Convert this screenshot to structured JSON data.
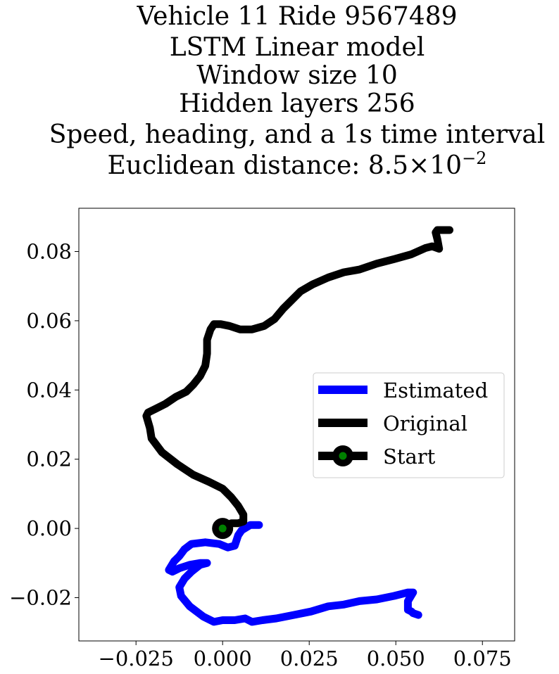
{
  "chart_data": {
    "type": "line",
    "title": [
      "Vehicle 11 Ride 9567489",
      "LSTM Linear model",
      "Window size 10",
      "Hidden layers 256",
      "Speed, heading, and a 1s time interval"
    ],
    "title_metric": {
      "prefix": "Euclidean distance: 8.5",
      "times": "×",
      "base": "10",
      "exponent": "−2"
    },
    "xlabel": "",
    "ylabel": "",
    "xlim": [
      -0.0415,
      0.0843
    ],
    "ylim": [
      -0.0325,
      0.0925
    ],
    "x_ticks": [
      -0.025,
      0.0,
      0.025,
      0.05,
      0.075
    ],
    "x_tick_labels": [
      "−0.025",
      "0.000",
      "0.025",
      "0.050",
      "0.075"
    ],
    "y_ticks": [
      -0.02,
      0.0,
      0.02,
      0.04,
      0.06,
      0.08
    ],
    "y_tick_labels": [
      "−0.02",
      "0.00",
      "0.02",
      "0.04",
      "0.06",
      "0.08"
    ],
    "grid": false,
    "legend_position": "center-right",
    "series": [
      {
        "name": "Estimated",
        "color": "#0000ff",
        "x": [
          0.0105,
          0.008,
          0.0055,
          0.0045,
          0.0035,
          0.0015,
          -0.001,
          -0.005,
          -0.009,
          -0.011,
          -0.0125,
          -0.014,
          -0.0155,
          -0.0145,
          -0.0125,
          -0.0095,
          -0.0065,
          -0.0045,
          -0.0065,
          -0.009,
          -0.011,
          -0.0125,
          -0.012,
          -0.0095,
          -0.0055,
          -0.0025,
          0.0,
          0.0035,
          0.0065,
          0.0085,
          0.0115,
          0.0155,
          0.0205,
          0.0255,
          0.0305,
          0.035,
          0.0395,
          0.0445,
          0.0495,
          0.0535,
          0.055,
          0.0535,
          0.0535,
          0.0545,
          0.055,
          0.0565
        ],
        "y": [
          0.001,
          0.001,
          -0.0005,
          -0.002,
          -0.005,
          -0.0055,
          -0.0045,
          -0.004,
          -0.0045,
          -0.006,
          -0.008,
          -0.0095,
          -0.012,
          -0.0125,
          -0.0115,
          -0.0105,
          -0.01,
          -0.01,
          -0.0105,
          -0.0125,
          -0.0145,
          -0.017,
          -0.0195,
          -0.0225,
          -0.0255,
          -0.027,
          -0.0265,
          -0.0265,
          -0.026,
          -0.027,
          -0.0265,
          -0.026,
          -0.025,
          -0.024,
          -0.0225,
          -0.022,
          -0.021,
          -0.0205,
          -0.0195,
          -0.0185,
          -0.0185,
          -0.021,
          -0.0235,
          -0.024,
          -0.0245,
          -0.025
        ]
      },
      {
        "name": "Original",
        "color": "#000000",
        "x": [
          0.0,
          0.0025,
          0.0045,
          0.006,
          0.006,
          0.0045,
          0.0025,
          0.0,
          -0.004,
          -0.0085,
          -0.013,
          -0.0175,
          -0.0205,
          -0.021,
          -0.022,
          -0.0215,
          -0.0195,
          -0.0165,
          -0.0135,
          -0.0105,
          -0.0085,
          -0.0065,
          -0.005,
          -0.0045,
          -0.0045,
          -0.0035,
          -0.0025,
          -0.0005,
          0.002,
          0.005,
          0.0085,
          0.012,
          0.015,
          0.0175,
          0.0195,
          0.0225,
          0.026,
          0.0305,
          0.035,
          0.0395,
          0.0445,
          0.0495,
          0.0545,
          0.0585,
          0.0605,
          0.0625,
          0.062,
          0.0615,
          0.062,
          0.0635,
          0.0655
        ],
        "y": [
          0.0,
          0.0015,
          0.0015,
          0.002,
          0.004,
          0.0065,
          0.009,
          0.0115,
          0.0135,
          0.0155,
          0.0185,
          0.022,
          0.026,
          0.029,
          0.0325,
          0.0335,
          0.0345,
          0.036,
          0.038,
          0.0395,
          0.0415,
          0.044,
          0.047,
          0.0505,
          0.0545,
          0.0575,
          0.059,
          0.059,
          0.0585,
          0.0575,
          0.0575,
          0.0585,
          0.0605,
          0.0635,
          0.0655,
          0.0685,
          0.0705,
          0.0725,
          0.074,
          0.0748,
          0.0765,
          0.0778,
          0.0792,
          0.081,
          0.0815,
          0.0808,
          0.0835,
          0.0855,
          0.0862,
          0.0862,
          0.0862
        ]
      }
    ],
    "start": {
      "name": "Start",
      "x": 0.0,
      "y": 0.0,
      "color": "#008000",
      "edge_color": "#000000"
    }
  }
}
